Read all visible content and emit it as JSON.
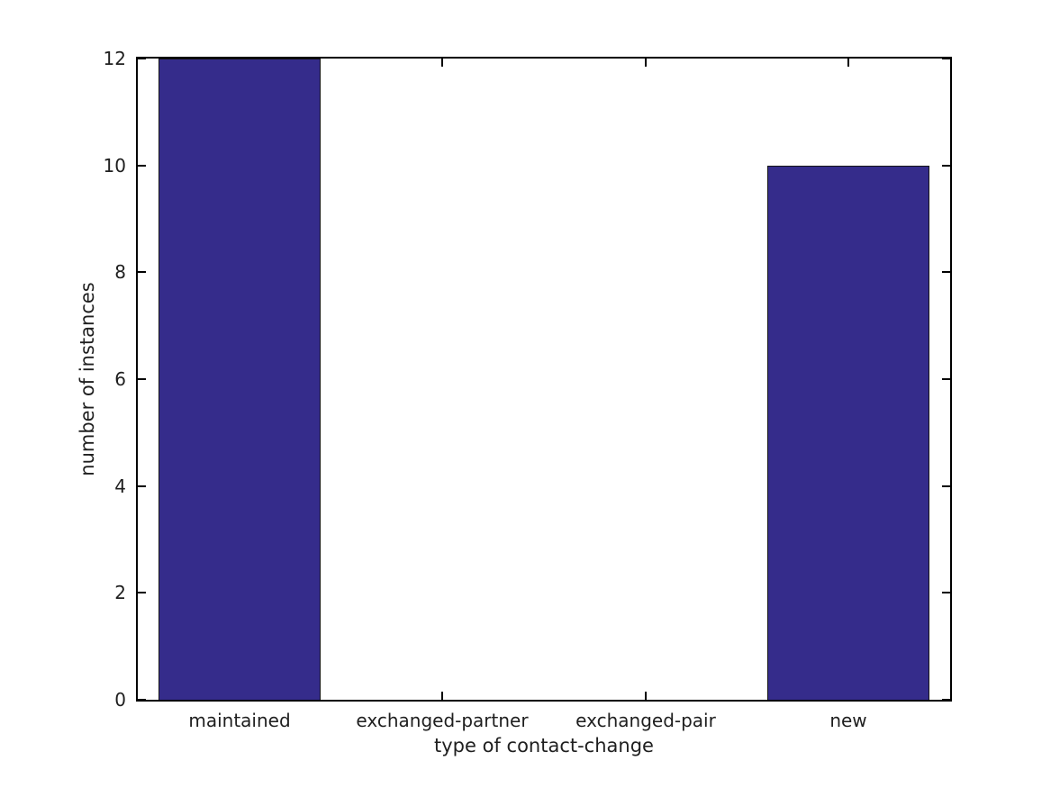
{
  "chart_data": {
    "type": "bar",
    "categories": [
      "maintained",
      "exchanged-partner",
      "exchanged-pair",
      "new"
    ],
    "values": [
      12,
      0,
      0,
      10
    ],
    "title": "",
    "xlabel": "type of contact-change",
    "ylabel": "number of instances",
    "ylim": [
      0,
      12
    ],
    "yticks": [
      0,
      2,
      4,
      6,
      8,
      10,
      12
    ],
    "bar_color": "#352c8b",
    "bar_edge_color": "#151515",
    "bar_width_fraction": 0.8,
    "spine_color": "#000000",
    "text_color": "#1f1f1f",
    "background_color": "#ffffff",
    "grid": false,
    "legend": null,
    "tick_direction": "in"
  }
}
